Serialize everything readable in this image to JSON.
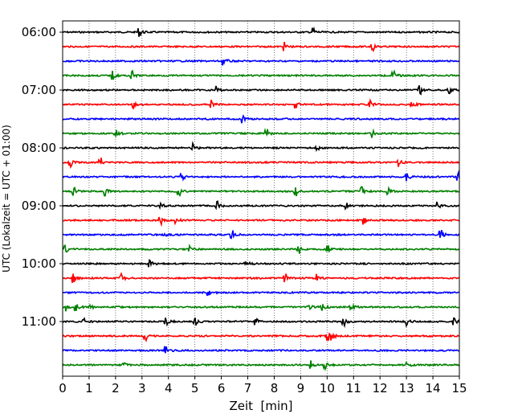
{
  "chart_data": {
    "type": "line",
    "subtype": "helicorder",
    "xlabel": "Zeit  [min]",
    "ylabel": "UTC (Lokalzeit = UTC + 01:00)",
    "xlim": [
      0,
      15
    ],
    "xticks": [
      "0",
      "1",
      "2",
      "3",
      "4",
      "5",
      "6",
      "7",
      "8",
      "9",
      "10",
      "11",
      "12",
      "13",
      "14",
      "15"
    ],
    "yticks": [
      "06:00",
      "07:00",
      "08:00",
      "09:00",
      "10:00",
      "11:00"
    ],
    "grid": "vertical dotted",
    "line_interval_min": 15,
    "colors": [
      "#000000",
      "#ff0000",
      "#0000ff",
      "#008000"
    ],
    "traces": [
      {
        "start": "06:00",
        "events": [
          2.9,
          9.5
        ]
      },
      {
        "start": "06:15",
        "events": [
          8.4,
          11.7
        ]
      },
      {
        "start": "06:30",
        "events": [
          6.1
        ]
      },
      {
        "start": "06:45",
        "events": [
          1.9,
          2.6,
          12.5
        ]
      },
      {
        "start": "07:00",
        "events": [
          5.8,
          13.5,
          14.6
        ]
      },
      {
        "start": "07:15",
        "events": [
          2.7,
          5.6,
          8.8,
          11.6,
          13.2
        ]
      },
      {
        "start": "07:30",
        "events": [
          6.8
        ]
      },
      {
        "start": "07:45",
        "events": [
          2.0,
          7.7,
          11.7
        ]
      },
      {
        "start": "08:00",
        "events": [
          4.9,
          9.6
        ]
      },
      {
        "start": "08:15",
        "events": [
          0.3,
          1.4,
          12.7
        ]
      },
      {
        "start": "08:30",
        "events": [
          4.5,
          13.0,
          14.95
        ]
      },
      {
        "start": "08:45",
        "events": [
          0.4,
          1.6,
          4.4,
          8.8,
          11.3,
          12.3
        ]
      },
      {
        "start": "09:00",
        "events": [
          3.7,
          5.8,
          10.7,
          14.2
        ]
      },
      {
        "start": "09:15",
        "events": [
          3.7,
          4.3,
          11.4
        ]
      },
      {
        "start": "09:30",
        "events": [
          3.8,
          6.4,
          14.3
        ]
      },
      {
        "start": "09:45",
        "events": [
          0.1,
          4.8,
          8.9,
          10.0
        ]
      },
      {
        "start": "10:00",
        "events": [
          3.3,
          6.9
        ]
      },
      {
        "start": "10:15",
        "events": [
          0.4,
          2.2,
          8.4,
          9.6
        ]
      },
      {
        "start": "10:30",
        "events": [
          5.5
        ]
      },
      {
        "start": "10:45",
        "events": [
          0.1,
          0.5,
          1.0,
          9.3,
          9.8,
          10.9
        ]
      },
      {
        "start": "11:00",
        "events": [
          0.8,
          3.9,
          5.0,
          7.3,
          10.6,
          13.0,
          14.8
        ]
      },
      {
        "start": "11:15",
        "events": [
          3.1,
          10.0,
          10.1
        ]
      },
      {
        "start": "11:30",
        "events": [
          3.9
        ]
      },
      {
        "start": "11:45",
        "events": [
          2.3,
          9.4,
          9.9,
          13.0
        ]
      }
    ]
  }
}
